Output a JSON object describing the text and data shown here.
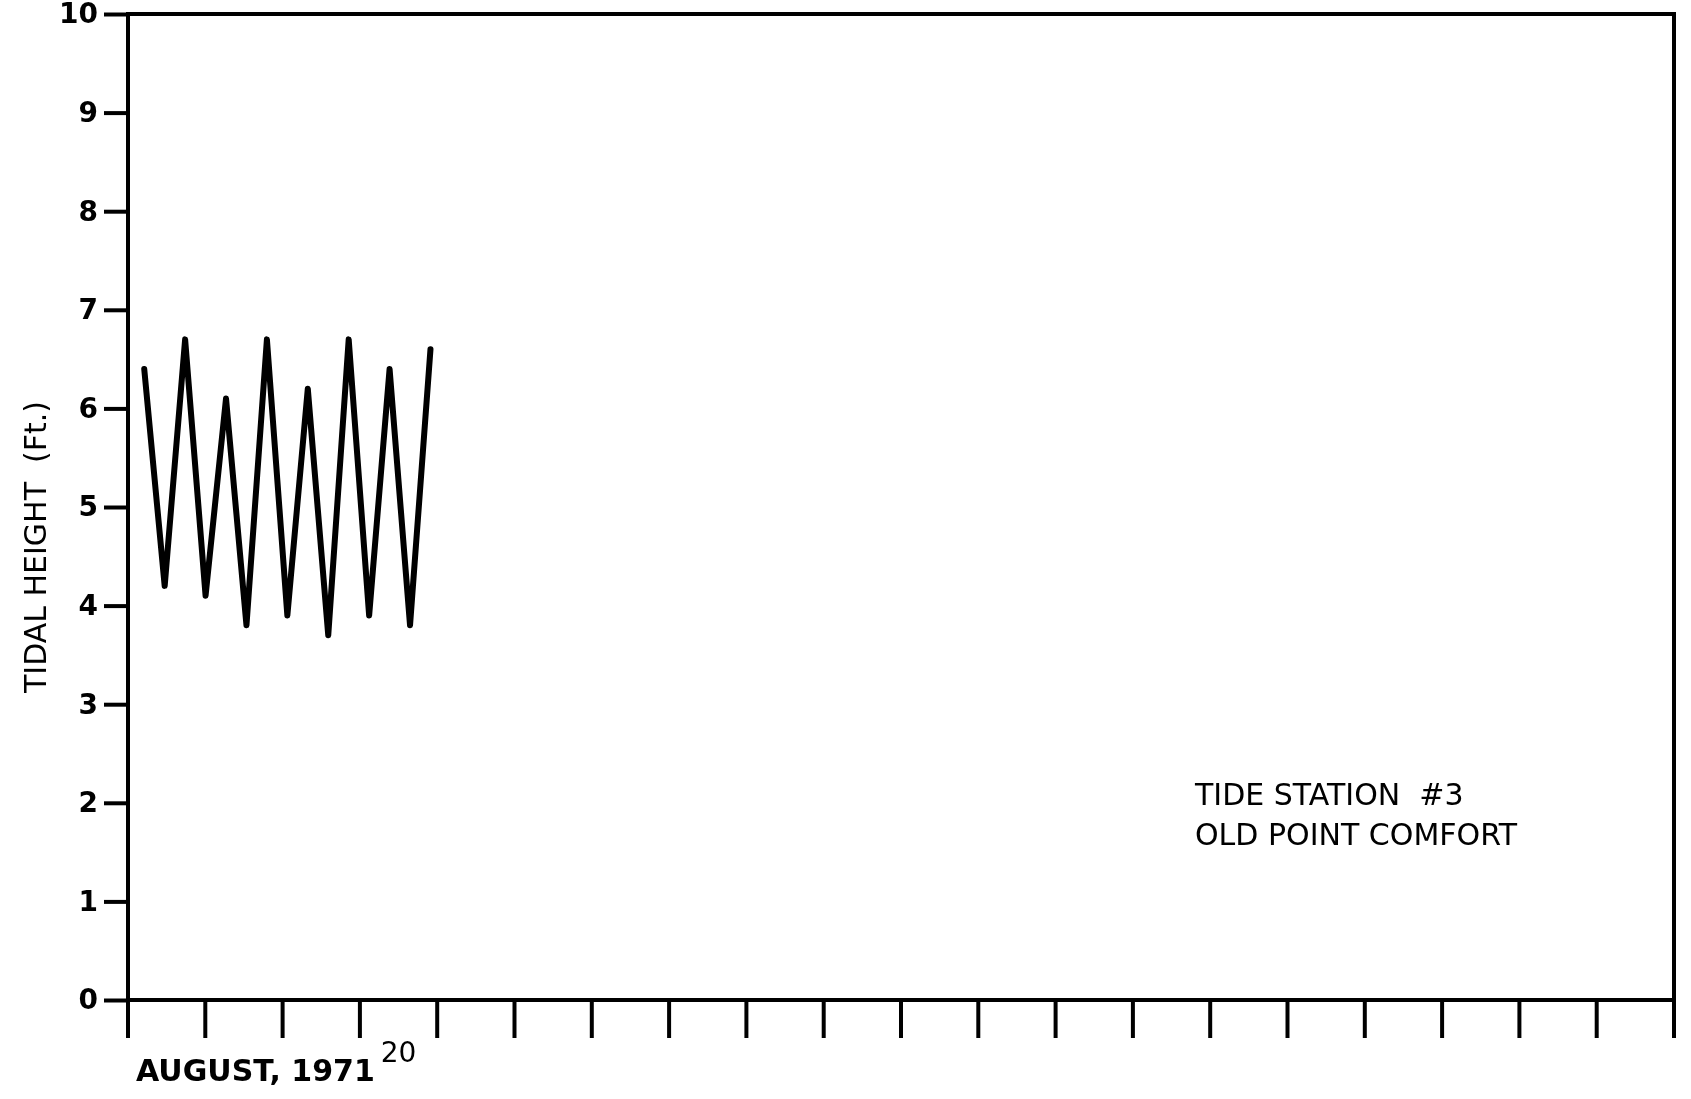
{
  "chart_data": {
    "type": "line",
    "xlabel": "AUGUST, 1971",
    "ylabel": "TIDAL HEIGHT  (Ft.)",
    "annotations": [
      "20",
      "TIDE STATION  #3\nOLD POINT COMFORT"
    ],
    "categories": [
      null,
      null,
      null,
      null,
      null,
      null,
      null,
      null,
      null,
      null,
      null,
      null,
      null,
      null,
      null
    ],
    "ylim": [
      0,
      10
    ],
    "yticks": [
      0,
      1,
      2,
      3,
      4,
      5,
      6,
      7,
      8,
      9,
      10
    ],
    "grid": false,
    "marker": "none",
    "line_style": "solid",
    "series": [
      {
        "color": "#000000",
        "values": [
          6.4,
          4.2,
          6.7,
          4.1,
          6.1,
          3.8,
          6.7,
          3.9,
          6.2,
          3.7,
          6.7,
          3.9,
          6.4,
          3.8,
          6.6
        ]
      }
    ]
  }
}
